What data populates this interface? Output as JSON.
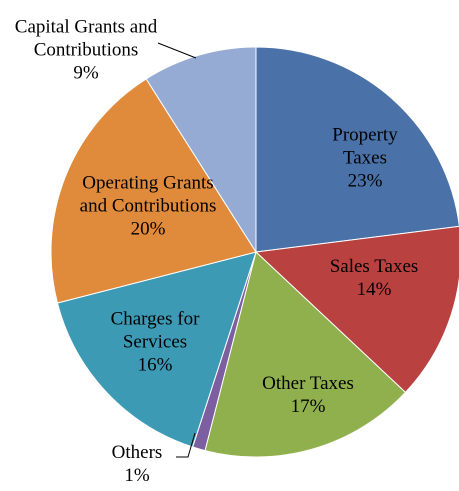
{
  "chart_data": {
    "type": "pie",
    "categories": [
      "Property Taxes",
      "Sales Taxes",
      "Other Taxes",
      "Others",
      "Charges for Services",
      "Operating Grants and Contributions",
      "Capital Grants and Contributions"
    ],
    "values": [
      23,
      14,
      17,
      1,
      16,
      20,
      9
    ],
    "value_labels": [
      "23%",
      "14%",
      "17%",
      "1%",
      "16%",
      "20%",
      "9%"
    ],
    "colors": [
      "#4a72a8",
      "#b9413f",
      "#8fb04d",
      "#7b5fa0",
      "#3d9ab5",
      "#e08a3c",
      "#95abd3"
    ]
  }
}
